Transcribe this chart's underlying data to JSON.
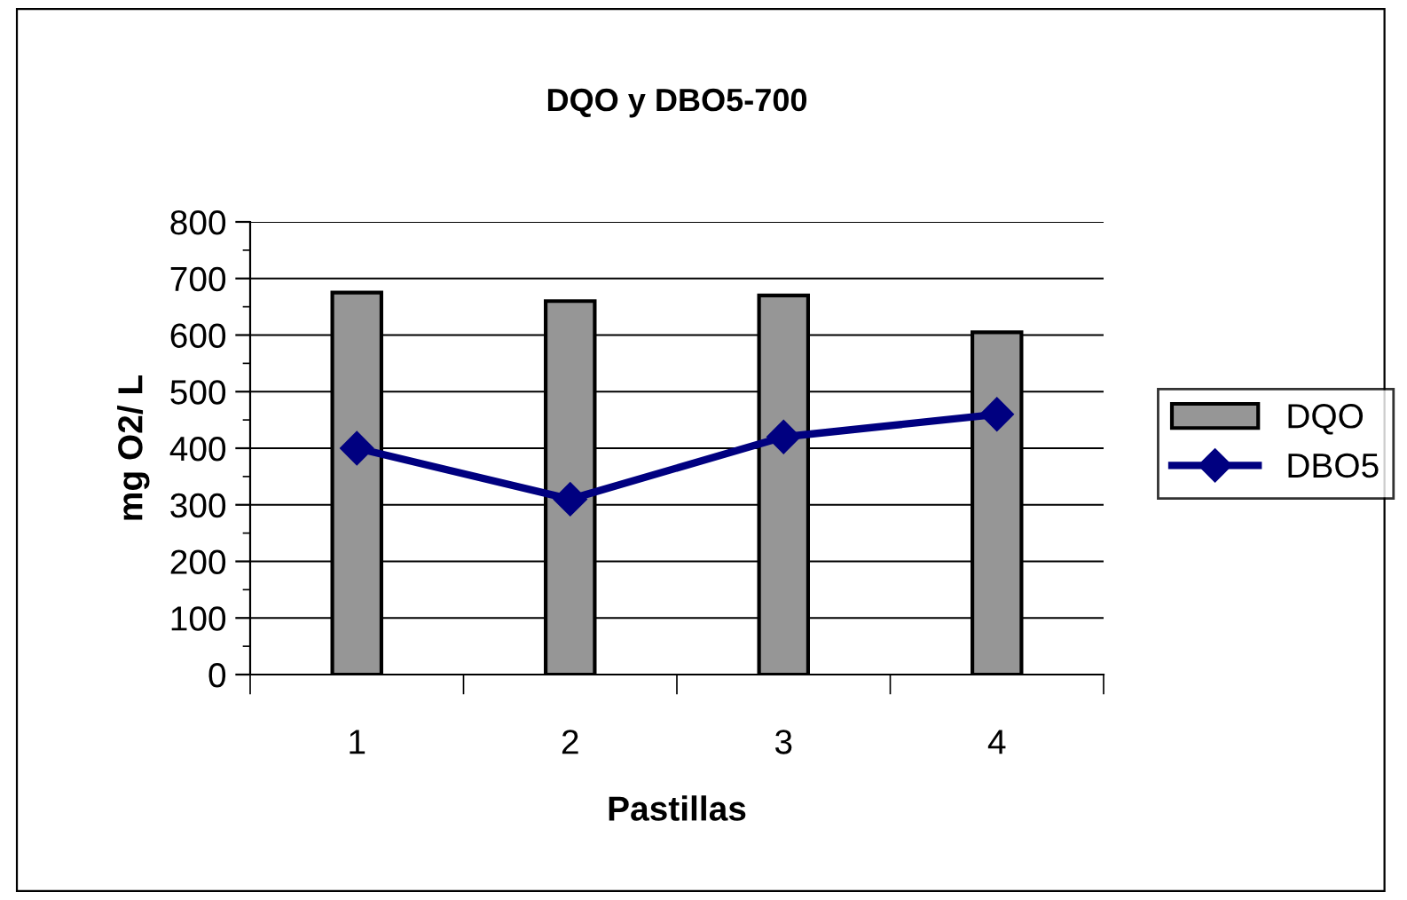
{
  "chart_data": {
    "type": "bar",
    "title": "DQO y DBO5-700",
    "xlabel": "Pastillas",
    "ylabel": "mg O2/ L",
    "categories": [
      "1",
      "2",
      "3",
      "4"
    ],
    "series": [
      {
        "name": "DQO",
        "color": "#969696",
        "values": [
          675,
          660,
          670,
          605
        ]
      },
      {
        "name": "DBO5",
        "type": "line",
        "color": "#000080",
        "values": [
          400,
          310,
          420,
          460
        ],
        "marker": "diamond"
      }
    ],
    "ylim": [
      0,
      800
    ],
    "yticks": [
      0,
      100,
      200,
      300,
      400,
      500,
      600,
      700,
      800
    ],
    "grid": "y",
    "legend": "right"
  }
}
